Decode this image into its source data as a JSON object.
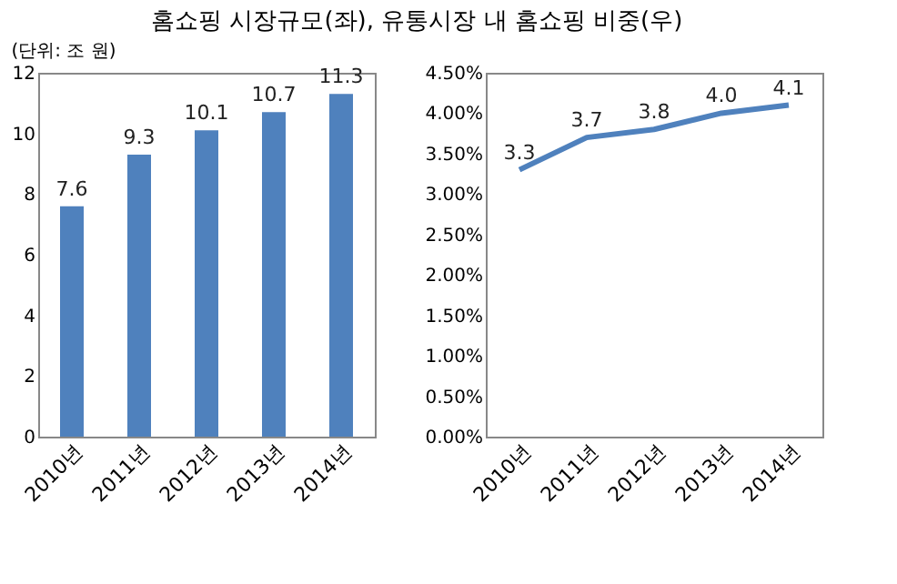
{
  "chart_data": [
    {
      "type": "bar",
      "title": "홈쇼핑 시장규모(좌), 유통시장 내 홈쇼핑 비중(우)",
      "annotations": [
        "(단위: 조 원)"
      ],
      "categories": [
        "2010년",
        "2011년",
        "2012년",
        "2013년",
        "2014년"
      ],
      "values": [
        7.6,
        9.3,
        10.1,
        10.7,
        11.3
      ],
      "value_labels": [
        "7.6",
        "9.3",
        "10.1",
        "10.7",
        "11.3"
      ],
      "color": "#4f81bd",
      "ylim": [
        0,
        12
      ],
      "yticks": [
        0,
        2,
        4,
        6,
        8,
        10,
        12
      ],
      "grid": false
    },
    {
      "type": "line",
      "categories": [
        "2010년",
        "2011년",
        "2012년",
        "2013년",
        "2014년"
      ],
      "values": [
        3.3,
        3.7,
        3.8,
        4.0,
        4.1
      ],
      "value_labels": [
        "3.3",
        "3.7",
        "3.8",
        "4.0",
        "4.1"
      ],
      "color": "#4f81bd",
      "ylim": [
        0,
        4.5
      ],
      "yticks": [
        {
          "value": 0,
          "label": "0.00%"
        },
        {
          "value": 0.5,
          "label": "0.50%"
        },
        {
          "value": 1,
          "label": "1.00%"
        },
        {
          "value": 1.5,
          "label": "1.50%"
        },
        {
          "value": 2,
          "label": "2.00%"
        },
        {
          "value": 2.5,
          "label": "2.50%"
        },
        {
          "value": 3,
          "label": "3.00%"
        },
        {
          "value": 3.5,
          "label": "3.50%"
        },
        {
          "value": 4,
          "label": "4.00%"
        },
        {
          "value": 4.5,
          "label": "4.50%"
        }
      ],
      "grid": false,
      "marker": "none",
      "line_style": "solid"
    }
  ]
}
